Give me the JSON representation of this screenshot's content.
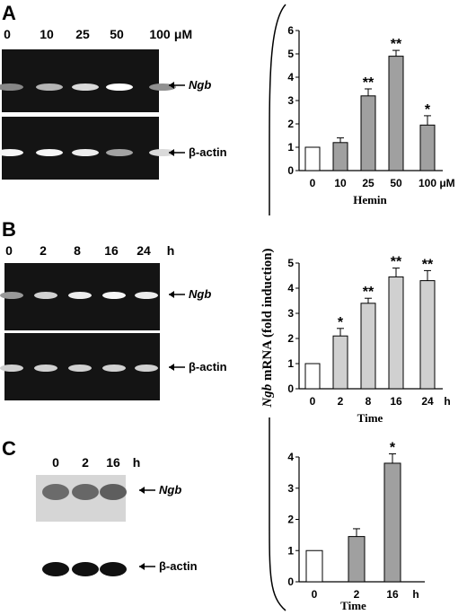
{
  "figure": {
    "y_axis_label_gene": "Ngb",
    "y_axis_label_rest": " mRNA (fold induction)"
  },
  "panels": [
    {
      "letter": "A",
      "lanes": [
        "0",
        "10",
        "25",
        "50",
        "100"
      ],
      "lane_unit": "μM",
      "bands": [
        {
          "label": "Ngb",
          "italic": true,
          "intensities": [
            0.35,
            0.6,
            0.8,
            1.0,
            0.4
          ]
        },
        {
          "label": "β-actin",
          "italic": false,
          "intensities": [
            0.95,
            0.95,
            0.9,
            0.5,
            0.8
          ]
        }
      ],
      "gel_style": "dark"
    },
    {
      "letter": "B",
      "lanes": [
        "0",
        "2",
        "8",
        "16",
        "24"
      ],
      "lane_unit": "h",
      "bands": [
        {
          "label": "Ngb",
          "italic": true,
          "intensities": [
            0.45,
            0.75,
            0.9,
            0.95,
            0.9
          ]
        },
        {
          "label": "β-actin",
          "italic": false,
          "intensities": [
            0.75,
            0.75,
            0.75,
            0.75,
            0.75
          ]
        }
      ],
      "gel_style": "dark"
    },
    {
      "letter": "C",
      "lanes": [
        "0",
        "2",
        "16"
      ],
      "lane_unit": "h",
      "bands": [
        {
          "label": "Ngb",
          "italic": true,
          "intensities": [
            0.7,
            0.75,
            0.85
          ]
        },
        {
          "label": "β-actin",
          "italic": false,
          "intensities": [
            0.95,
            0.95,
            0.95
          ]
        }
      ],
      "gel_style": "light"
    }
  ],
  "chart_data": [
    {
      "type": "bar",
      "categories": [
        "0",
        "10",
        "25",
        "50",
        "100"
      ],
      "x_unit": "μM",
      "values": [
        1.0,
        1.2,
        3.2,
        4.9,
        1.95
      ],
      "errors": [
        0,
        0.2,
        0.3,
        0.25,
        0.4
      ],
      "significance": [
        "",
        "",
        "**",
        "**",
        "*"
      ],
      "bar_fills": [
        "#ffffff",
        "#a0a0a0",
        "#a0a0a0",
        "#a0a0a0",
        "#a0a0a0"
      ],
      "xlabel": "Hemin",
      "ylim": [
        0,
        6
      ],
      "yticks": [
        "0",
        "1",
        "2",
        "3",
        "4",
        "5",
        "6"
      ]
    },
    {
      "type": "bar",
      "categories": [
        "0",
        "2",
        "8",
        "16",
        "24"
      ],
      "x_unit": "h",
      "values": [
        1.0,
        2.1,
        3.4,
        4.45,
        4.3
      ],
      "errors": [
        0,
        0.3,
        0.2,
        0.35,
        0.4
      ],
      "significance": [
        "",
        "*",
        "**",
        "**",
        "**"
      ],
      "bar_fills": [
        "#ffffff",
        "#d0d0d0",
        "#d0d0d0",
        "#d0d0d0",
        "#d0d0d0"
      ],
      "xlabel": "Time",
      "ylim": [
        0,
        5
      ],
      "yticks": [
        "0",
        "1",
        "2",
        "3",
        "4",
        "5"
      ]
    },
    {
      "type": "bar",
      "categories": [
        "0",
        "2",
        "16"
      ],
      "x_unit": "h",
      "values": [
        1.0,
        1.45,
        3.8
      ],
      "errors": [
        0,
        0.25,
        0.3
      ],
      "significance": [
        "",
        "",
        "*"
      ],
      "bar_fills": [
        "#ffffff",
        "#a0a0a0",
        "#a0a0a0"
      ],
      "xlabel": "Time",
      "ylim": [
        0,
        4
      ],
      "yticks": [
        "0",
        "1",
        "2",
        "3",
        "4"
      ]
    }
  ]
}
